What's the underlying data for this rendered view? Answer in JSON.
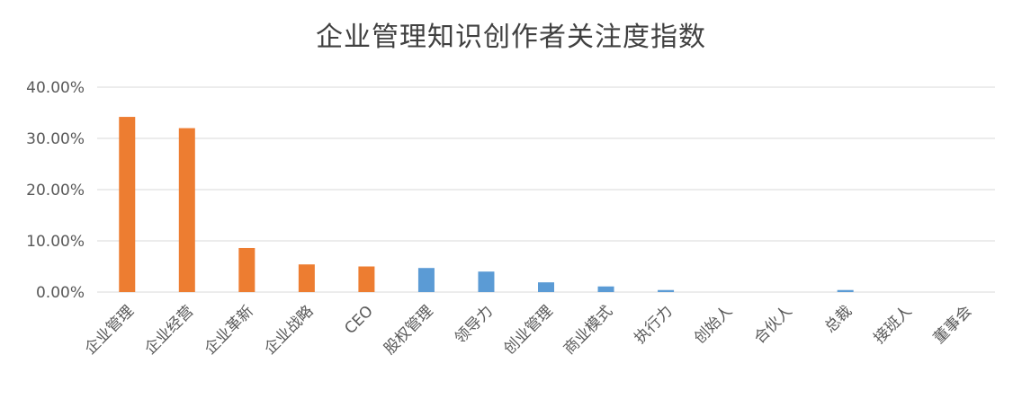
{
  "chart_data": {
    "type": "bar",
    "title": "企业管理知识创作者关注度指数",
    "xlabel": "",
    "ylabel": "",
    "ylim": [
      0,
      40
    ],
    "yticks": [
      "0.00%",
      "10.00%",
      "20.00%",
      "30.00%",
      "40.00%"
    ],
    "ytick_values": [
      0,
      10,
      20,
      30,
      40
    ],
    "grid": true,
    "categories": [
      "企业管理",
      "企业经营",
      "企业革新",
      "企业战略",
      "CEO",
      "股权管理",
      "领导力",
      "创业管理",
      "商业模式",
      "执行力",
      "创始人",
      "合伙人",
      "总裁",
      "接班人",
      "董事会"
    ],
    "values": [
      34.2,
      32.0,
      8.6,
      5.4,
      5.0,
      4.7,
      4.0,
      1.9,
      1.1,
      0.4,
      0.0,
      0.0,
      0.4,
      0.0,
      0.0
    ],
    "bar_colors": [
      "#ED7D31",
      "#ED7D31",
      "#ED7D31",
      "#ED7D31",
      "#ED7D31",
      "#5B9BD5",
      "#5B9BD5",
      "#5B9BD5",
      "#5B9BD5",
      "#5B9BD5",
      "#5B9BD5",
      "#5B9BD5",
      "#5B9BD5",
      "#5B9BD5",
      "#5B9BD5"
    ],
    "colors": {
      "highlight": "#ED7D31",
      "normal": "#5B9BD5",
      "grid": "#D9D9D9",
      "text": "#595959"
    }
  }
}
